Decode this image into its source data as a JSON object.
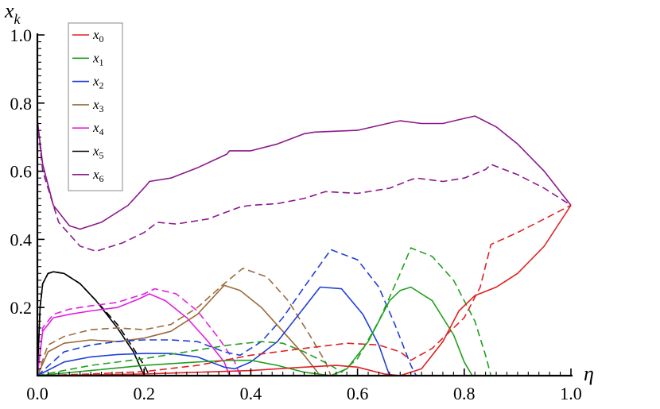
{
  "chart_data": {
    "type": "line",
    "title": "",
    "xlabel": "η",
    "ylabel": "x",
    "ylabel_sub": "k",
    "xlim": [
      0,
      1
    ],
    "ylim": [
      0,
      1
    ],
    "x_ticks": [
      "0.0",
      "0.2",
      "0.4",
      "0.6",
      "0.8",
      "1.0"
    ],
    "y_ticks": [
      "0.2",
      "0.4",
      "0.6",
      "0.8",
      "1.0"
    ],
    "grid": false,
    "legend_placement": "top-left",
    "legend": [
      {
        "label": "x",
        "sub": "0",
        "color": "#e02020"
      },
      {
        "label": "x",
        "sub": "1",
        "color": "#1ea01e"
      },
      {
        "label": "x",
        "sub": "2",
        "color": "#1f3fd6"
      },
      {
        "label": "x",
        "sub": "3",
        "color": "#9b6b3c"
      },
      {
        "label": "x",
        "sub": "4",
        "color": "#e020e0"
      },
      {
        "label": "x",
        "sub": "5",
        "color": "#000000"
      },
      {
        "label": "x",
        "sub": "6",
        "color": "#8b1a8b"
      }
    ],
    "series": [
      {
        "name": "x6",
        "color": "#8b1a8b",
        "style": "solid",
        "points": [
          [
            0.0,
            0.75
          ],
          [
            0.01,
            0.62
          ],
          [
            0.03,
            0.5
          ],
          [
            0.06,
            0.44
          ],
          [
            0.08,
            0.43
          ],
          [
            0.12,
            0.45
          ],
          [
            0.17,
            0.5
          ],
          [
            0.205,
            0.56
          ],
          [
            0.21,
            0.57
          ],
          [
            0.25,
            0.58
          ],
          [
            0.3,
            0.61
          ],
          [
            0.355,
            0.65
          ],
          [
            0.36,
            0.66
          ],
          [
            0.4,
            0.66
          ],
          [
            0.45,
            0.68
          ],
          [
            0.5,
            0.71
          ],
          [
            0.52,
            0.715
          ],
          [
            0.6,
            0.72
          ],
          [
            0.67,
            0.745
          ],
          [
            0.68,
            0.748
          ],
          [
            0.72,
            0.74
          ],
          [
            0.76,
            0.74
          ],
          [
            0.8,
            0.755
          ],
          [
            0.82,
            0.762
          ],
          [
            0.86,
            0.73
          ],
          [
            0.9,
            0.68
          ],
          [
            0.95,
            0.6
          ],
          [
            1.0,
            0.5
          ]
        ]
      },
      {
        "name": "x6 dashed",
        "color": "#8b1a8b",
        "style": "dashed",
        "points": [
          [
            0.0,
            0.75
          ],
          [
            0.01,
            0.6
          ],
          [
            0.04,
            0.45
          ],
          [
            0.08,
            0.38
          ],
          [
            0.11,
            0.365
          ],
          [
            0.16,
            0.39
          ],
          [
            0.2,
            0.42
          ],
          [
            0.225,
            0.45
          ],
          [
            0.26,
            0.445
          ],
          [
            0.32,
            0.46
          ],
          [
            0.38,
            0.495
          ],
          [
            0.4,
            0.5
          ],
          [
            0.45,
            0.505
          ],
          [
            0.5,
            0.52
          ],
          [
            0.54,
            0.54
          ],
          [
            0.6,
            0.535
          ],
          [
            0.66,
            0.55
          ],
          [
            0.7,
            0.575
          ],
          [
            0.71,
            0.58
          ],
          [
            0.76,
            0.57
          ],
          [
            0.8,
            0.58
          ],
          [
            0.84,
            0.605
          ],
          [
            0.85,
            0.62
          ],
          [
            0.9,
            0.59
          ],
          [
            0.95,
            0.55
          ],
          [
            1.0,
            0.5
          ]
        ]
      },
      {
        "name": "x5",
        "color": "#000000",
        "style": "solid",
        "points": [
          [
            0.0,
            0.0
          ],
          [
            0.005,
            0.2
          ],
          [
            0.01,
            0.27
          ],
          [
            0.02,
            0.3
          ],
          [
            0.03,
            0.305
          ],
          [
            0.05,
            0.3
          ],
          [
            0.08,
            0.27
          ],
          [
            0.11,
            0.22
          ],
          [
            0.15,
            0.14
          ],
          [
            0.18,
            0.07
          ],
          [
            0.2,
            0.0
          ]
        ]
      },
      {
        "name": "x5 dashed",
        "color": "#000000",
        "style": "dashed",
        "points": [
          [
            0.0,
            0.0
          ],
          [
            0.005,
            0.2
          ],
          [
            0.01,
            0.27
          ],
          [
            0.02,
            0.3
          ],
          [
            0.03,
            0.305
          ],
          [
            0.05,
            0.3
          ],
          [
            0.08,
            0.27
          ],
          [
            0.11,
            0.22
          ],
          [
            0.15,
            0.15
          ],
          [
            0.18,
            0.08
          ],
          [
            0.2,
            0.03
          ],
          [
            0.21,
            0.0
          ]
        ]
      },
      {
        "name": "x4",
        "color": "#e020e0",
        "style": "solid",
        "points": [
          [
            0.0,
            0.0
          ],
          [
            0.01,
            0.13
          ],
          [
            0.03,
            0.17
          ],
          [
            0.06,
            0.18
          ],
          [
            0.1,
            0.19
          ],
          [
            0.15,
            0.2
          ],
          [
            0.19,
            0.225
          ],
          [
            0.21,
            0.24
          ],
          [
            0.24,
            0.22
          ],
          [
            0.28,
            0.17
          ],
          [
            0.32,
            0.1
          ],
          [
            0.35,
            0.04
          ],
          [
            0.36,
            0.0
          ]
        ]
      },
      {
        "name": "x4 dashed",
        "color": "#e020e0",
        "style": "dashed",
        "points": [
          [
            0.0,
            0.0
          ],
          [
            0.01,
            0.14
          ],
          [
            0.03,
            0.18
          ],
          [
            0.06,
            0.195
          ],
          [
            0.1,
            0.205
          ],
          [
            0.15,
            0.215
          ],
          [
            0.2,
            0.24
          ],
          [
            0.22,
            0.255
          ],
          [
            0.26,
            0.24
          ],
          [
            0.3,
            0.19
          ],
          [
            0.34,
            0.11
          ],
          [
            0.37,
            0.04
          ],
          [
            0.38,
            0.0
          ]
        ]
      },
      {
        "name": "x3",
        "color": "#9b6b3c",
        "style": "solid",
        "points": [
          [
            0.0,
            0.0
          ],
          [
            0.02,
            0.07
          ],
          [
            0.05,
            0.095
          ],
          [
            0.1,
            0.105
          ],
          [
            0.15,
            0.1
          ],
          [
            0.2,
            0.11
          ],
          [
            0.25,
            0.13
          ],
          [
            0.3,
            0.18
          ],
          [
            0.35,
            0.265
          ],
          [
            0.38,
            0.25
          ],
          [
            0.42,
            0.2
          ],
          [
            0.46,
            0.13
          ],
          [
            0.5,
            0.06
          ],
          [
            0.52,
            0.02
          ],
          [
            0.53,
            0.0
          ]
        ]
      },
      {
        "name": "x3 dashed",
        "color": "#9b6b3c",
        "style": "dashed",
        "points": [
          [
            0.0,
            0.0
          ],
          [
            0.02,
            0.09
          ],
          [
            0.05,
            0.115
          ],
          [
            0.1,
            0.135
          ],
          [
            0.15,
            0.14
          ],
          [
            0.2,
            0.135
          ],
          [
            0.25,
            0.15
          ],
          [
            0.3,
            0.2
          ],
          [
            0.35,
            0.27
          ],
          [
            0.385,
            0.315
          ],
          [
            0.43,
            0.29
          ],
          [
            0.47,
            0.22
          ],
          [
            0.51,
            0.12
          ],
          [
            0.54,
            0.04
          ],
          [
            0.55,
            0.0
          ]
        ]
      },
      {
        "name": "x2",
        "color": "#1f3fd6",
        "style": "solid",
        "points": [
          [
            0.0,
            0.0
          ],
          [
            0.05,
            0.04
          ],
          [
            0.1,
            0.055
          ],
          [
            0.15,
            0.062
          ],
          [
            0.2,
            0.065
          ],
          [
            0.25,
            0.065
          ],
          [
            0.3,
            0.055
          ],
          [
            0.35,
            0.025
          ],
          [
            0.37,
            0.02
          ],
          [
            0.4,
            0.04
          ],
          [
            0.45,
            0.1
          ],
          [
            0.5,
            0.2
          ],
          [
            0.53,
            0.26
          ],
          [
            0.57,
            0.255
          ],
          [
            0.61,
            0.18
          ],
          [
            0.64,
            0.09
          ],
          [
            0.66,
            0.0
          ]
        ]
      },
      {
        "name": "x2 dashed",
        "color": "#1f3fd6",
        "style": "dashed",
        "points": [
          [
            0.0,
            0.0
          ],
          [
            0.05,
            0.07
          ],
          [
            0.1,
            0.09
          ],
          [
            0.15,
            0.1
          ],
          [
            0.2,
            0.105
          ],
          [
            0.25,
            0.105
          ],
          [
            0.3,
            0.1
          ],
          [
            0.35,
            0.07
          ],
          [
            0.38,
            0.06
          ],
          [
            0.42,
            0.1
          ],
          [
            0.46,
            0.17
          ],
          [
            0.5,
            0.26
          ],
          [
            0.55,
            0.37
          ],
          [
            0.6,
            0.34
          ],
          [
            0.64,
            0.26
          ],
          [
            0.67,
            0.15
          ],
          [
            0.7,
            0.03
          ],
          [
            0.71,
            0.0
          ]
        ]
      },
      {
        "name": "x1",
        "color": "#1ea01e",
        "style": "solid",
        "points": [
          [
            0.0,
            0.0
          ],
          [
            0.1,
            0.015
          ],
          [
            0.2,
            0.03
          ],
          [
            0.3,
            0.04
          ],
          [
            0.36,
            0.045
          ],
          [
            0.4,
            0.045
          ],
          [
            0.45,
            0.03
          ],
          [
            0.5,
            0.01
          ],
          [
            0.55,
            0.0
          ],
          [
            0.58,
            0.02
          ],
          [
            0.62,
            0.1
          ],
          [
            0.66,
            0.22
          ],
          [
            0.68,
            0.25
          ],
          [
            0.7,
            0.26
          ],
          [
            0.74,
            0.22
          ],
          [
            0.78,
            0.12
          ],
          [
            0.8,
            0.04
          ],
          [
            0.815,
            0.0
          ]
        ]
      },
      {
        "name": "x1 dashed",
        "color": "#1ea01e",
        "style": "dashed",
        "points": [
          [
            0.0,
            0.0
          ],
          [
            0.1,
            0.03
          ],
          [
            0.2,
            0.05
          ],
          [
            0.3,
            0.075
          ],
          [
            0.36,
            0.09
          ],
          [
            0.42,
            0.1
          ],
          [
            0.46,
            0.095
          ],
          [
            0.5,
            0.07
          ],
          [
            0.55,
            0.03
          ],
          [
            0.57,
            0.01
          ],
          [
            0.6,
            0.05
          ],
          [
            0.64,
            0.16
          ],
          [
            0.68,
            0.3
          ],
          [
            0.7,
            0.375
          ],
          [
            0.74,
            0.35
          ],
          [
            0.78,
            0.28
          ],
          [
            0.82,
            0.16
          ],
          [
            0.84,
            0.06
          ],
          [
            0.85,
            0.0
          ]
        ]
      },
      {
        "name": "x0",
        "color": "#e02020",
        "style": "solid",
        "points": [
          [
            0.0,
            0.0
          ],
          [
            0.1,
            0.002
          ],
          [
            0.2,
            0.005
          ],
          [
            0.3,
            0.01
          ],
          [
            0.4,
            0.015
          ],
          [
            0.5,
            0.025
          ],
          [
            0.56,
            0.03
          ],
          [
            0.6,
            0.025
          ],
          [
            0.65,
            0.005
          ],
          [
            0.68,
            0.0
          ],
          [
            0.72,
            0.02
          ],
          [
            0.76,
            0.1
          ],
          [
            0.79,
            0.19
          ],
          [
            0.82,
            0.235
          ],
          [
            0.86,
            0.26
          ],
          [
            0.9,
            0.3
          ],
          [
            0.95,
            0.38
          ],
          [
            1.0,
            0.5
          ]
        ]
      },
      {
        "name": "x0 dashed",
        "color": "#e02020",
        "style": "dashed",
        "points": [
          [
            0.0,
            0.0
          ],
          [
            0.1,
            0.005
          ],
          [
            0.2,
            0.012
          ],
          [
            0.3,
            0.03
          ],
          [
            0.4,
            0.06
          ],
          [
            0.5,
            0.08
          ],
          [
            0.58,
            0.095
          ],
          [
            0.64,
            0.09
          ],
          [
            0.68,
            0.07
          ],
          [
            0.7,
            0.045
          ],
          [
            0.74,
            0.08
          ],
          [
            0.8,
            0.17
          ],
          [
            0.83,
            0.26
          ],
          [
            0.85,
            0.385
          ],
          [
            0.9,
            0.42
          ],
          [
            0.95,
            0.46
          ],
          [
            1.0,
            0.5
          ]
        ]
      }
    ]
  }
}
